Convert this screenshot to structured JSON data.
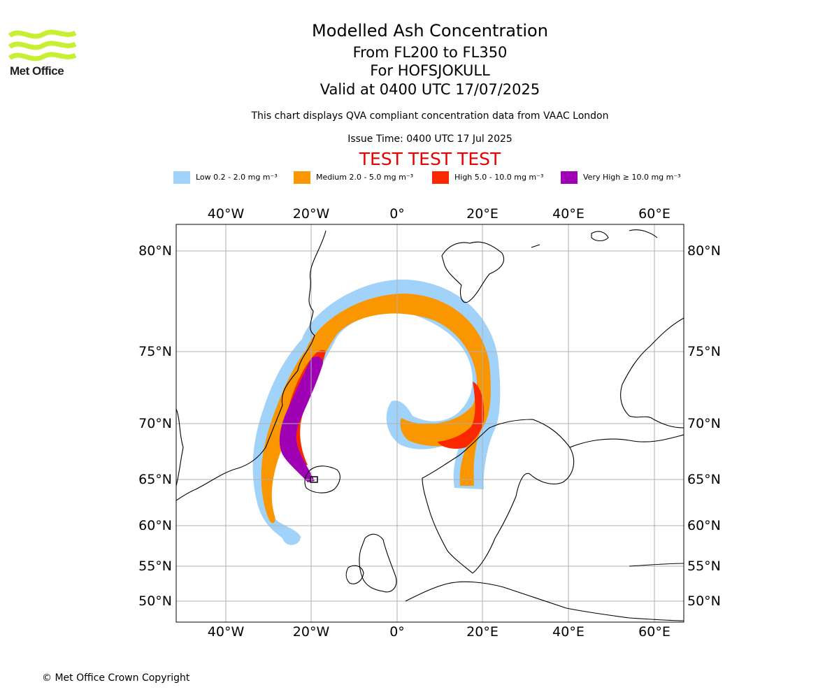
{
  "brand": {
    "name": "Met Office",
    "logo_color": "#c8f032",
    "logo_icon": "met-office-wave-logo"
  },
  "header": {
    "title": "Modelled Ash Concentration",
    "level_range": "From FL200 to FL350",
    "volcano": "For HOFSJOKULL",
    "valid_time": "Valid at 0400 UTC 17/07/2025",
    "description": "This chart displays QVA compliant concentration data from VAAC London",
    "issue_time": "Issue Time: 0400 UTC 17 Jul 2025",
    "test_banner": "TEST TEST TEST",
    "test_color": "#e60000"
  },
  "legend": [
    {
      "label": "Low 0.2 - 2.0 mg m⁻³",
      "color": "#a0d2fa"
    },
    {
      "label": "Medium 2.0 - 5.0 mg m⁻³",
      "color": "#fa9600"
    },
    {
      "label": "High 5.0 - 10.0 mg m⁻³",
      "color": "#fa2800"
    },
    {
      "label": "Very High  ≥  10.0 mg m⁻³",
      "color": "#a000b4"
    }
  ],
  "map": {
    "longitude_ticks": [
      "40°W",
      "20°W",
      "0°",
      "20°E",
      "40°E",
      "60°E"
    ],
    "latitude_ticks": [
      "80°N",
      "75°N",
      "70°N",
      "65°N",
      "60°N",
      "55°N",
      "50°N"
    ],
    "gridlines": true,
    "source_marker": "volcano-source-marker"
  },
  "footer": {
    "copyright": "© Met Office Crown Copyright"
  }
}
